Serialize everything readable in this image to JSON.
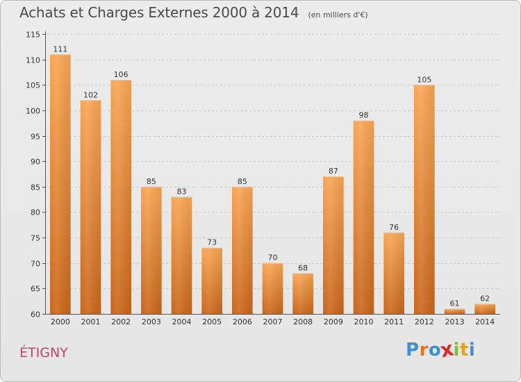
{
  "chart_data": {
    "type": "bar",
    "title": "Achats et Charges Externes 2000 à 2014",
    "subtitle": "(en milliers d'€)",
    "categories": [
      "2000",
      "2001",
      "2002",
      "2003",
      "2004",
      "2005",
      "2006",
      "2007",
      "2008",
      "2009",
      "2010",
      "2011",
      "2012",
      "2013",
      "2014"
    ],
    "values": [
      111,
      102,
      106,
      85,
      83,
      73,
      85,
      70,
      68,
      87,
      98,
      76,
      105,
      61,
      62
    ],
    "xlabel": "",
    "ylabel": "",
    "ylim": [
      60,
      115
    ],
    "yticks": [
      60,
      65,
      70,
      75,
      80,
      85,
      90,
      95,
      100,
      105,
      110,
      115
    ],
    "grid": true,
    "legend": "none",
    "bar_color": "#f0913a"
  },
  "commune": "ÉTIGNY",
  "logo": {
    "text": "Proxiti",
    "colors": [
      "#3d8fd1",
      "#e8751a",
      "#3d8fd1",
      "#d62b2b",
      "#7cbf3a",
      "#e8a21a",
      "#3d8fd1"
    ]
  }
}
